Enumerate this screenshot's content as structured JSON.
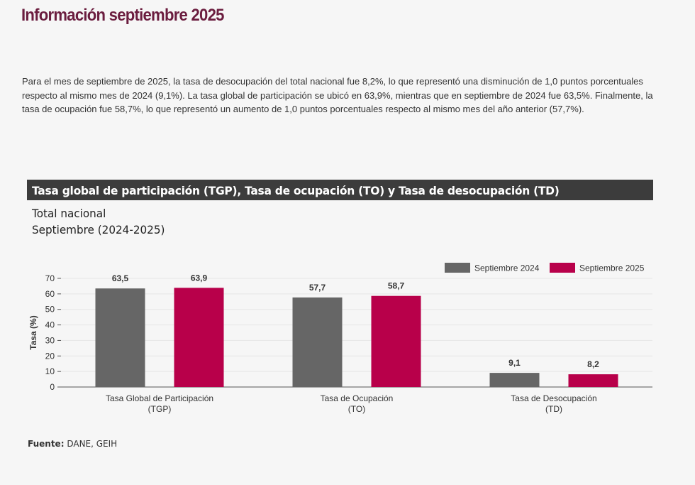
{
  "page": {
    "title": "Información septiembre 2025",
    "intro": "Para el mes de septiembre de 2025, la tasa de desocupación del total nacional fue 8,2%, lo que representó una disminución de 1,0 puntos porcentuales respecto al mismo mes de 2024 (9,1%). La tasa global de participación se ubicó en 63,9%, mientras que en septiembre de 2024 fue 63,5%. Finalmente, la tasa de ocupación fue 58,7%, lo que representó un aumento de 1,0 puntos porcentuales respecto al mismo mes del año anterior (57,7%)."
  },
  "chart_header": "Tasa global de participación (TGP), Tasa de ocupación (TO) y Tasa de desocupación (TD)",
  "subtitle_line1": "Total nacional",
  "subtitle_line2": "Septiembre (2024-2025)",
  "source_label": "Fuente:",
  "source_text": "DANE, GEIH",
  "colors": {
    "series_2024": "#666666",
    "series_2025": "#b8004a",
    "title": "#6b1d3f"
  },
  "chart_data": {
    "type": "bar",
    "categories": [
      [
        "Tasa Global de Participación",
        "(TGP)"
      ],
      [
        "Tasa de Ocupación",
        "(TO)"
      ],
      [
        "Tasa de Desocupación",
        "(TD)"
      ]
    ],
    "series": [
      {
        "name": "Septiembre 2024",
        "values": [
          63.5,
          57.7,
          9.1
        ],
        "labels": [
          "63,5",
          "57,7",
          "9,1"
        ],
        "color": "#666666"
      },
      {
        "name": "Septiembre 2025",
        "values": [
          63.9,
          58.7,
          8.2
        ],
        "labels": [
          "63,9",
          "58,7",
          "8,2"
        ],
        "color": "#b8004a"
      }
    ],
    "ylabel": "Tasa (%)",
    "ylim": [
      0,
      70
    ],
    "yticks": [
      0,
      10,
      20,
      30,
      40,
      50,
      60,
      70
    ],
    "grid": true,
    "legend": "top-right"
  }
}
